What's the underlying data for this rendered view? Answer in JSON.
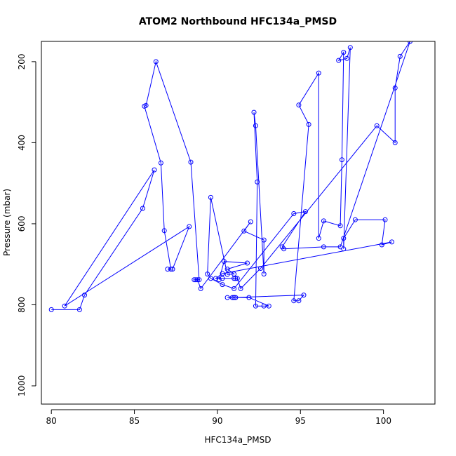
{
  "chart_data": {
    "type": "line",
    "title": "ATOM2 Northbound HFC134a_PMSD",
    "xlabel": "HFC134a_PMSD",
    "ylabel": "Pressure (mbar)",
    "xlim": [
      79.4,
      103.1
    ],
    "ylim": [
      1045,
      150
    ],
    "y_reversed": true,
    "x_ticks": [
      80,
      85,
      90,
      95,
      100
    ],
    "y_ticks": [
      200,
      400,
      600,
      800,
      1000
    ],
    "grid": false,
    "marker": "open-circle",
    "series_color": "#0000ff",
    "series": [
      {
        "name": "",
        "points": [
          [
            80.0,
            812
          ],
          [
            81.7,
            812
          ],
          [
            82.0,
            776
          ],
          [
            85.5,
            562
          ],
          [
            86.2,
            467
          ],
          [
            80.8,
            803
          ],
          [
            88.3,
            607
          ],
          [
            87.3,
            712
          ],
          [
            87.0,
            712
          ],
          [
            87.2,
            712
          ],
          [
            86.8,
            617
          ],
          [
            86.6,
            450
          ],
          [
            85.6,
            310
          ],
          [
            85.7,
            308
          ],
          [
            86.3,
            200
          ],
          [
            88.4,
            448
          ],
          [
            88.9,
            738
          ],
          [
            88.6,
            738
          ],
          [
            88.7,
            738
          ],
          [
            88.8,
            738
          ],
          [
            89.0,
            760
          ],
          [
            92.0,
            595
          ],
          [
            91.6,
            618
          ],
          [
            92.8,
            640
          ],
          [
            92.8,
            724
          ],
          [
            92.3,
            358
          ],
          [
            92.2,
            325
          ],
          [
            92.4,
            497
          ],
          [
            92.3,
            803
          ],
          [
            92.8,
            803
          ],
          [
            93.1,
            803
          ],
          [
            91.9,
            782
          ],
          [
            91.1,
            782
          ],
          [
            90.9,
            782
          ],
          [
            91.0,
            782
          ],
          [
            90.6,
            782
          ],
          [
            91.0,
            782
          ],
          [
            95.2,
            776
          ],
          [
            94.9,
            790
          ],
          [
            94.6,
            790
          ],
          [
            95.5,
            355
          ],
          [
            94.9,
            307
          ],
          [
            96.1,
            228
          ],
          [
            96.1,
            636
          ],
          [
            96.4,
            593
          ],
          [
            97.4,
            605
          ],
          [
            97.5,
            442
          ],
          [
            97.6,
            177
          ],
          [
            97.3,
            197
          ],
          [
            97.8,
            192
          ],
          [
            98.0,
            165
          ],
          [
            97.6,
            662
          ],
          [
            97.6,
            636
          ],
          [
            98.3,
            590
          ],
          [
            100.1,
            590
          ],
          [
            99.9,
            652
          ],
          [
            100.5,
            645
          ],
          [
            90.3,
            723
          ],
          [
            89.9,
            735
          ],
          [
            90.3,
            735
          ],
          [
            91.1,
            735
          ],
          [
            91.0,
            735
          ],
          [
            91.2,
            735
          ],
          [
            91.4,
            760
          ],
          [
            92.6,
            710
          ],
          [
            99.6,
            358
          ],
          [
            100.7,
            400
          ],
          [
            100.7,
            265
          ],
          [
            101.0,
            187
          ],
          [
            101.6,
            150
          ],
          [
            97.4,
            657
          ],
          [
            96.4,
            657
          ],
          [
            94.0,
            662
          ],
          [
            93.9,
            657
          ],
          [
            95.3,
            570
          ],
          [
            94.6,
            575
          ],
          [
            91.0,
            760
          ],
          [
            90.3,
            750
          ],
          [
            89.6,
            735
          ],
          [
            89.4,
            724
          ],
          [
            89.6,
            535
          ],
          [
            90.6,
            725
          ],
          [
            91.0,
            724
          ],
          [
            90.6,
            712
          ],
          [
            91.8,
            697
          ],
          [
            90.4,
            693
          ],
          [
            90.1,
            738
          ]
        ]
      }
    ]
  }
}
